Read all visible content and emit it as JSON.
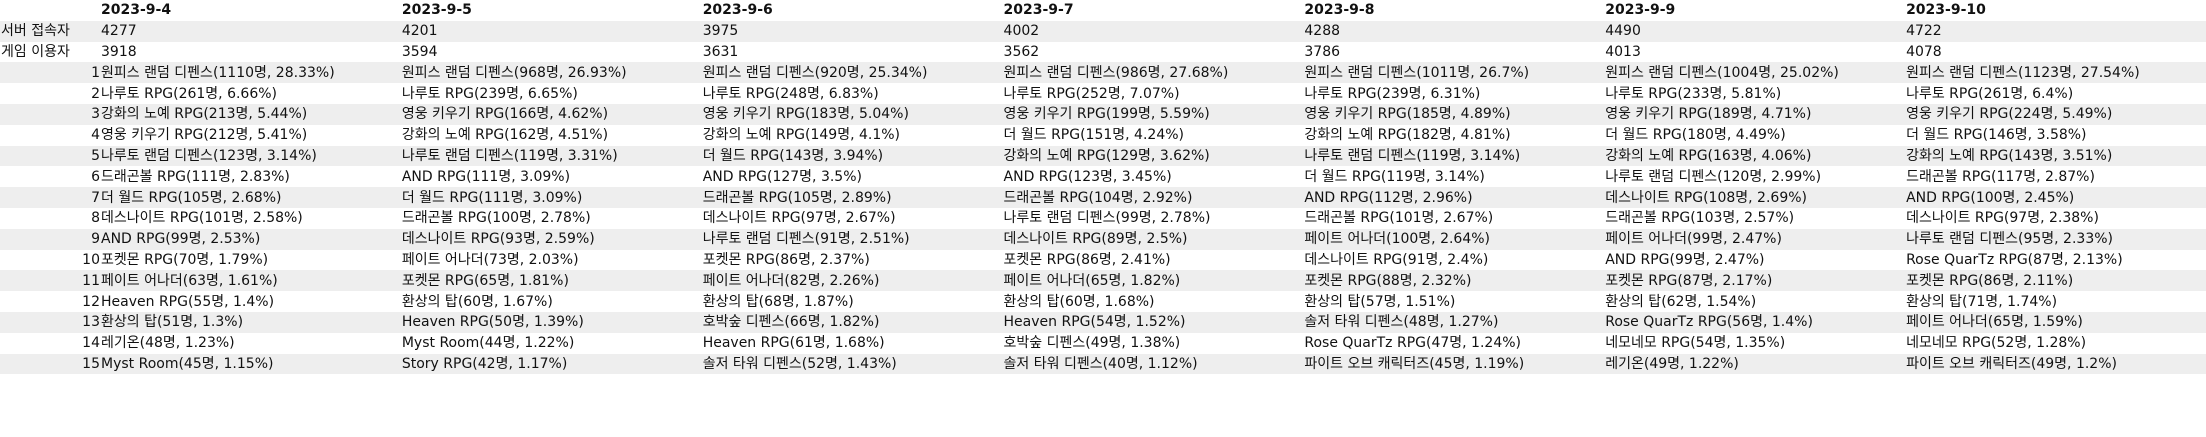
{
  "header": {
    "blank": "",
    "dates": [
      "2023-9-4",
      "2023-9-5",
      "2023-9-6",
      "2023-9-7",
      "2023-9-8",
      "2023-9-9",
      "2023-9-10"
    ]
  },
  "server_users": {
    "label": "서버 접속자",
    "values": [
      "4277",
      "4201",
      "3975",
      "4002",
      "4288",
      "4490",
      "4722"
    ]
  },
  "game_users": {
    "label": "게임 이용자",
    "values": [
      "3918",
      "3594",
      "3631",
      "3562",
      "3786",
      "4013",
      "4078"
    ]
  },
  "rows": [
    {
      "rank": "1",
      "cells": [
        "원피스 랜덤 디펜스(1110명, 28.33%)",
        "원피스 랜덤 디펜스(968명, 26.93%)",
        "원피스 랜덤 디펜스(920명, 25.34%)",
        "원피스 랜덤 디펜스(986명, 27.68%)",
        "원피스 랜덤 디펜스(1011명, 26.7%)",
        "원피스 랜덤 디펜스(1004명, 25.02%)",
        "원피스 랜덤 디펜스(1123명, 27.54%)"
      ]
    },
    {
      "rank": "2",
      "cells": [
        "나루토 RPG(261명, 6.66%)",
        "나루토 RPG(239명, 6.65%)",
        "나루토 RPG(248명, 6.83%)",
        "나루토 RPG(252명, 7.07%)",
        "나루토 RPG(239명, 6.31%)",
        "나루토 RPG(233명, 5.81%)",
        "나루토 RPG(261명, 6.4%)"
      ]
    },
    {
      "rank": "3",
      "cells": [
        "강화의 노예 RPG(213명, 5.44%)",
        "영웅 키우기 RPG(166명, 4.62%)",
        "영웅 키우기 RPG(183명, 5.04%)",
        "영웅 키우기 RPG(199명, 5.59%)",
        "영웅 키우기 RPG(185명, 4.89%)",
        "영웅 키우기 RPG(189명, 4.71%)",
        "영웅 키우기 RPG(224명, 5.49%)"
      ]
    },
    {
      "rank": "4",
      "cells": [
        "영웅 키우기 RPG(212명, 5.41%)",
        "강화의 노예 RPG(162명, 4.51%)",
        "강화의 노예 RPG(149명, 4.1%)",
        "더 월드 RPG(151명, 4.24%)",
        "강화의 노예 RPG(182명, 4.81%)",
        "더 월드 RPG(180명, 4.49%)",
        "더 월드 RPG(146명, 3.58%)"
      ]
    },
    {
      "rank": "5",
      "cells": [
        "나루토 랜덤 디펜스(123명, 3.14%)",
        "나루토 랜덤 디펜스(119명, 3.31%)",
        "더 월드 RPG(143명, 3.94%)",
        "강화의 노예 RPG(129명, 3.62%)",
        "나루토 랜덤 디펜스(119명, 3.14%)",
        "강화의 노예 RPG(163명, 4.06%)",
        "강화의 노예 RPG(143명, 3.51%)"
      ]
    },
    {
      "rank": "6",
      "cells": [
        "드래곤볼 RPG(111명, 2.83%)",
        "AND RPG(111명, 3.09%)",
        "AND RPG(127명, 3.5%)",
        "AND RPG(123명, 3.45%)",
        "더 월드 RPG(119명, 3.14%)",
        "나루토 랜덤 디펜스(120명, 2.99%)",
        "드래곤볼 RPG(117명, 2.87%)"
      ]
    },
    {
      "rank": "7",
      "cells": [
        "더 월드 RPG(105명, 2.68%)",
        "더 월드 RPG(111명, 3.09%)",
        "드래곤볼 RPG(105명, 2.89%)",
        "드래곤볼 RPG(104명, 2.92%)",
        "AND RPG(112명, 2.96%)",
        "데스나이트 RPG(108명, 2.69%)",
        "AND RPG(100명, 2.45%)"
      ]
    },
    {
      "rank": "8",
      "cells": [
        "데스나이트 RPG(101명, 2.58%)",
        "드래곤볼 RPG(100명, 2.78%)",
        "데스나이트 RPG(97명, 2.67%)",
        "나루토 랜덤 디펜스(99명, 2.78%)",
        "드래곤볼 RPG(101명, 2.67%)",
        "드래곤볼 RPG(103명, 2.57%)",
        "데스나이트 RPG(97명, 2.38%)"
      ]
    },
    {
      "rank": "9",
      "cells": [
        "AND RPG(99명, 2.53%)",
        "데스나이트 RPG(93명, 2.59%)",
        "나루토 랜덤 디펜스(91명, 2.51%)",
        "데스나이트 RPG(89명, 2.5%)",
        "페이트 어나더(100명, 2.64%)",
        "페이트 어나더(99명, 2.47%)",
        "나루토 랜덤 디펜스(95명, 2.33%)"
      ]
    },
    {
      "rank": "10",
      "cells": [
        "포켓몬 RPG(70명, 1.79%)",
        "페이트 어나더(73명, 2.03%)",
        "포켓몬 RPG(86명, 2.37%)",
        "포켓몬 RPG(86명, 2.41%)",
        "데스나이트 RPG(91명, 2.4%)",
        "AND RPG(99명, 2.47%)",
        "Rose QuarTz RPG(87명, 2.13%)"
      ]
    },
    {
      "rank": "11",
      "cells": [
        "페이트 어나더(63명, 1.61%)",
        "포켓몬 RPG(65명, 1.81%)",
        "페이트 어나더(82명, 2.26%)",
        "페이트 어나더(65명, 1.82%)",
        "포켓몬 RPG(88명, 2.32%)",
        "포켓몬 RPG(87명, 2.17%)",
        "포켓몬 RPG(86명, 2.11%)"
      ]
    },
    {
      "rank": "12",
      "cells": [
        "Heaven RPG(55명, 1.4%)",
        "환상의 탑(60명, 1.67%)",
        "환상의 탑(68명, 1.87%)",
        "환상의 탑(60명, 1.68%)",
        "환상의 탑(57명, 1.51%)",
        "환상의 탑(62명, 1.54%)",
        "환상의 탑(71명, 1.74%)"
      ]
    },
    {
      "rank": "13",
      "cells": [
        "환상의 탑(51명, 1.3%)",
        "Heaven RPG(50명, 1.39%)",
        "호박숲 디펜스(66명, 1.82%)",
        "Heaven RPG(54명, 1.52%)",
        "솔저 타워 디펜스(48명, 1.27%)",
        "Rose QuarTz RPG(56명, 1.4%)",
        "페이트 어나더(65명, 1.59%)"
      ]
    },
    {
      "rank": "14",
      "cells": [
        "레기온(48명, 1.23%)",
        "Myst Room(44명, 1.22%)",
        "Heaven RPG(61명, 1.68%)",
        "호박숲 디펜스(49명, 1.38%)",
        "Rose QuarTz RPG(47명, 1.24%)",
        "네모네모 RPG(54명, 1.35%)",
        "네모네모 RPG(52명, 1.28%)"
      ]
    },
    {
      "rank": "15",
      "cells": [
        "Myst Room(45명, 1.15%)",
        "Story RPG(42명, 1.17%)",
        "솔저 타워 디펜스(52명, 1.43%)",
        "솔저 타워 디펜스(40명, 1.12%)",
        "파이트 오브 캐릭터즈(45명, 1.19%)",
        "레기온(49명, 1.22%)",
        "파이트 오브 캐릭터즈(49명, 1.2%)"
      ]
    }
  ]
}
